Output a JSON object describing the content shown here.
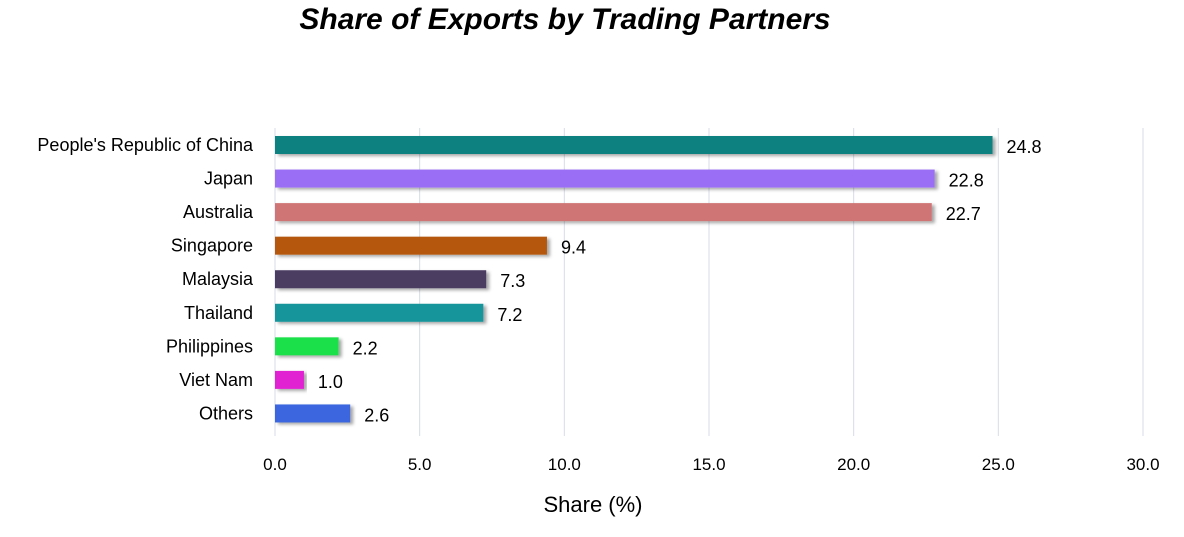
{
  "chart_data": {
    "type": "bar",
    "orientation": "horizontal",
    "title": "Share of Exports by Trading Partners",
    "xlabel": "Share (%)",
    "ylabel": "",
    "xlim": [
      0,
      30
    ],
    "x_ticks": [
      "0.0",
      "5.0",
      "10.0",
      "15.0",
      "20.0",
      "25.0",
      "30.0"
    ],
    "grid": "vertical",
    "legend": "none",
    "categories": [
      "People's Republic of China",
      "Japan",
      "Australia",
      "Singapore",
      "Malaysia",
      "Thailand",
      "Philippines",
      "Viet Nam",
      "Others"
    ],
    "values": [
      24.8,
      22.8,
      22.7,
      9.4,
      7.3,
      7.2,
      2.2,
      1.0,
      2.6
    ],
    "value_labels": [
      "24.8",
      "22.8",
      "22.7",
      "9.4",
      "7.3",
      "7.2",
      "2.2",
      "1.0",
      "2.6"
    ],
    "colors": [
      "#0a8080",
      "#9a6ef5",
      "#cf7574",
      "#b5590b",
      "#4b3d62",
      "#17959a",
      "#1ee04a",
      "#e020d2",
      "#3a66e0"
    ]
  }
}
